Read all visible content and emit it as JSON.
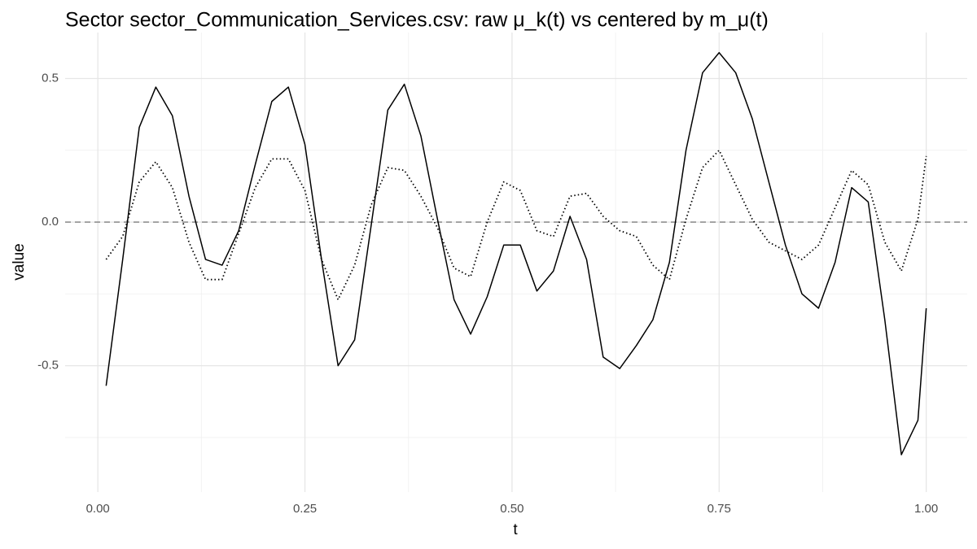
{
  "chart_data": {
    "type": "line",
    "title": "Sector sector_Communication_Services.csv: raw μ_k(t) vs centered by m_μ(t)",
    "x_label": "t",
    "y_label": "value",
    "x": [
      0.01,
      0.03,
      0.05,
      0.07,
      0.09,
      0.11,
      0.13,
      0.15,
      0.17,
      0.19,
      0.21,
      0.23,
      0.25,
      0.27,
      0.29,
      0.31,
      0.33,
      0.35,
      0.37,
      0.39,
      0.41,
      0.43,
      0.45,
      0.47,
      0.49,
      0.51,
      0.53,
      0.55,
      0.57,
      0.59,
      0.61,
      0.63,
      0.65,
      0.67,
      0.69,
      0.71,
      0.73,
      0.75,
      0.77,
      0.79,
      0.81,
      0.83,
      0.85,
      0.87,
      0.89,
      0.91,
      0.93,
      0.95,
      0.97,
      0.99,
      1.0
    ],
    "series": [
      {
        "color": "#000000",
        "dash": "solid",
        "values": [
          -0.57,
          -0.13,
          0.33,
          0.47,
          0.37,
          0.09,
          -0.13,
          -0.15,
          -0.03,
          0.2,
          0.42,
          0.47,
          0.27,
          -0.13,
          -0.5,
          -0.41,
          -0.01,
          0.39,
          0.48,
          0.3,
          0.01,
          -0.27,
          -0.39,
          -0.26,
          -0.08,
          -0.08,
          -0.24,
          -0.17,
          0.02,
          -0.13,
          -0.47,
          -0.51,
          -0.43,
          -0.34,
          -0.14,
          0.25,
          0.52,
          0.59,
          0.52,
          0.36,
          0.14,
          -0.08,
          -0.25,
          -0.3,
          -0.14,
          0.12,
          0.07,
          -0.34,
          -0.81,
          -0.69,
          -0.3
        ]
      },
      {
        "color": "#000000",
        "dash": "dotted",
        "values": [
          -0.13,
          -0.05,
          0.14,
          0.21,
          0.12,
          -0.07,
          -0.2,
          -0.2,
          -0.04,
          0.12,
          0.22,
          0.22,
          0.11,
          -0.13,
          -0.27,
          -0.15,
          0.06,
          0.19,
          0.18,
          0.09,
          -0.02,
          -0.16,
          -0.19,
          0.0,
          0.14,
          0.11,
          -0.03,
          -0.05,
          0.09,
          0.1,
          0.02,
          -0.03,
          -0.05,
          -0.15,
          -0.2,
          0.01,
          0.19,
          0.25,
          0.13,
          0.01,
          -0.07,
          -0.1,
          -0.13,
          -0.08,
          0.05,
          0.18,
          0.13,
          -0.07,
          -0.17,
          0.01,
          0.23
        ]
      }
    ],
    "hline": 0,
    "xlim": [
      -0.0395,
      1.0495
    ],
    "ylim": [
      -0.94,
      0.66
    ],
    "xticks": [
      {
        "value": 0,
        "label": "0.00"
      },
      {
        "value": 0.25,
        "label": "0.25"
      },
      {
        "value": 0.5,
        "label": "0.50"
      },
      {
        "value": 0.75,
        "label": "0.75"
      },
      {
        "value": 1,
        "label": "1.00"
      }
    ],
    "yticks": [
      -0.5,
      {
        "value": 0,
        "label": "0.0"
      },
      0.5
    ],
    "grid": true
  }
}
